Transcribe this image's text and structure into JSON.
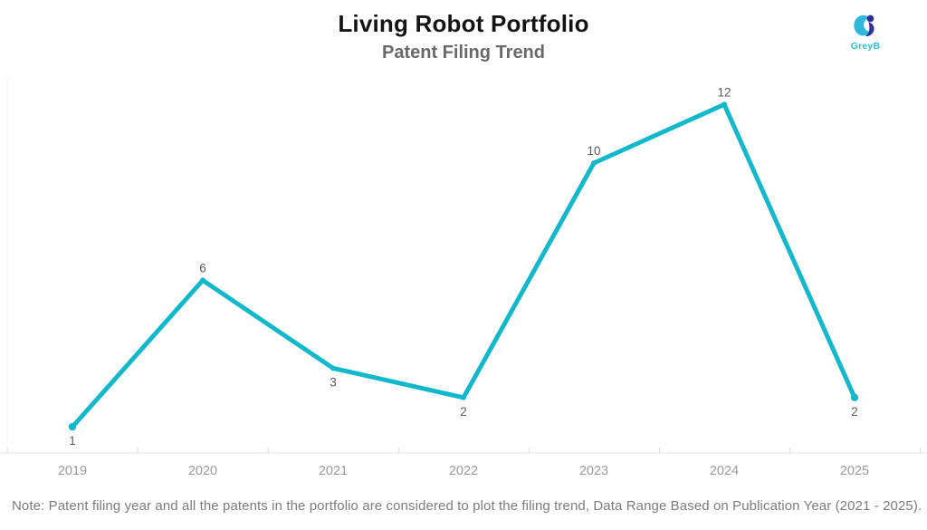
{
  "header": {
    "title": "Living Robot Portfolio",
    "subtitle": "Patent Filing Trend"
  },
  "logo": {
    "text": "GreyB"
  },
  "chart_data": {
    "type": "line",
    "title": "Living Robot Portfolio",
    "subtitle": "Patent Filing Trend",
    "categories": [
      "2019",
      "2020",
      "2021",
      "2022",
      "2023",
      "2024",
      "2025"
    ],
    "values": [
      1,
      6,
      3,
      2,
      10,
      12,
      2
    ],
    "data_labels": [
      "1",
      "6",
      "3",
      "2",
      "10",
      "12",
      "2"
    ],
    "xlabel": "",
    "ylabel": "",
    "ylim": [
      0,
      12.75
    ],
    "grid": false,
    "legend": false,
    "line_color": "#14b8cb"
  },
  "note": {
    "text": "Note: Patent filing year and all the patents in the portfolio are considered to plot the filing trend, Data Range Based on Publication Year (2021 - 2025)."
  },
  "colors": {
    "line": "#14b8cb",
    "axis_line": "#e4e4e4",
    "tick": "#dcdcdc",
    "pane_border": "#f6f5ef",
    "value_label": "#5a5a5a",
    "year_label": "#9b9b9b",
    "title": "#141414",
    "subtitle": "#696969",
    "note": "#7c7c7c",
    "logo_cyan": "#2eb9dc",
    "logo_navy": "#2e3192",
    "logo_text": "#2cc0d4"
  }
}
